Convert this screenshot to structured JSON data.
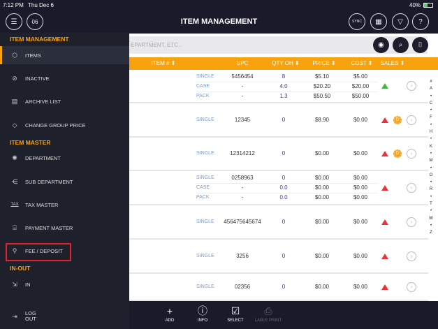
{
  "status": {
    "time": "7:12 PM",
    "date": "Thu Dec 6",
    "battery": "40%"
  },
  "header": {
    "title": "ITEM MANAGEMENT",
    "calendar_day": "06",
    "sync": "SYNC"
  },
  "search": {
    "placeholder": "EPARTMENT, ETC.."
  },
  "columns": [
    "ITEM # ⬍",
    "UPC",
    "QTY OH ⬍",
    "PRICE ⬍",
    "COST ⬍",
    "SALES ⬍"
  ],
  "rows": [
    {
      "subs": [
        {
          "type": "SINGLE",
          "upc": "5456454",
          "qty": "8",
          "price": "$5.10",
          "cost": "$5.00"
        },
        {
          "type": "CASE",
          "upc": "-",
          "qty": "4.0",
          "price": "$20.20",
          "cost": "$20.00"
        },
        {
          "type": "PACK",
          "upc": "-",
          "qty": "1.3",
          "price": "$50.50",
          "cost": "$50.00"
        }
      ],
      "trend": "up",
      "badge": false
    },
    {
      "subs": [
        {
          "type": "SINGLE",
          "upc": "12345",
          "qty": "0",
          "price": "$8.90",
          "cost": "$0.00"
        }
      ],
      "trend": "down",
      "badge": true
    },
    {
      "subs": [
        {
          "type": "SINGLE",
          "upc": "12314212",
          "qty": "0",
          "price": "$0.00",
          "cost": "$0.00"
        }
      ],
      "trend": "down",
      "badge": true
    },
    {
      "subs": [
        {
          "type": "SINGLE",
          "upc": "0258963",
          "qty": "0",
          "price": "$0.00",
          "cost": "$0.00"
        },
        {
          "type": "CASE",
          "upc": "-",
          "qty": "0.0",
          "price": "$0.00",
          "cost": "$0.00"
        },
        {
          "type": "PACK",
          "upc": "-",
          "qty": "0.0",
          "price": "$0.00",
          "cost": "$0.00"
        }
      ],
      "trend": "down",
      "badge": false
    },
    {
      "subs": [
        {
          "type": "SINGLE",
          "upc": "456475645674",
          "qty": "0",
          "price": "$0.00",
          "cost": "$0.00"
        }
      ],
      "trend": "down",
      "badge": false
    },
    {
      "subs": [
        {
          "type": "SINGLE",
          "upc": "3256",
          "qty": "0",
          "price": "$0.00",
          "cost": "$0.00"
        }
      ],
      "trend": "down",
      "badge": false
    },
    {
      "subs": [
        {
          "type": "SINGLE",
          "upc": "02356",
          "qty": "0",
          "price": "$0.00",
          "cost": "$0.00"
        }
      ],
      "trend": "down",
      "badge": false
    }
  ],
  "badge_letter": "D",
  "index": [
    "#",
    "A",
    "•",
    "C",
    "•",
    "F",
    "•",
    "H",
    "•",
    "K",
    "•",
    "M",
    "•",
    "O",
    "•",
    "R",
    "•",
    "T",
    "•",
    "W",
    "•",
    "Z"
  ],
  "sidebar": {
    "sections": [
      "ITEM MANAGEMENT",
      "ITEM MASTER",
      "IN-OUT"
    ],
    "items": [
      {
        "label": "ITEMS",
        "icon": "cube-icon",
        "glyph": "⬡"
      },
      {
        "label": "INACTIVE",
        "icon": "inactive-icon",
        "glyph": "⊘"
      },
      {
        "label": "ARCHIVE LIST",
        "icon": "archive-icon",
        "glyph": "▤"
      },
      {
        "label": "CHANGE GROUP PRICE",
        "icon": "tag-icon",
        "glyph": "◇"
      },
      {
        "label": "DEPARTMENT",
        "icon": "department-icon",
        "glyph": "✺"
      },
      {
        "label": "SUB DEPARTMENT",
        "icon": "sub-department-icon",
        "glyph": "⋲"
      },
      {
        "label": "TAX MASTER",
        "icon": "tax-icon",
        "glyph": "TAX"
      },
      {
        "label": "PAYMENT MASTER",
        "icon": "payment-icon",
        "glyph": "⌸"
      },
      {
        "label": "FEE / DEPOSIT",
        "icon": "fee-icon",
        "glyph": "⚲"
      },
      {
        "label": "IN",
        "icon": "in-icon",
        "glyph": "⇲"
      }
    ],
    "logout": "LOG OUT"
  },
  "bottom": [
    {
      "label": "ADD",
      "glyph": "+"
    },
    {
      "label": "INFO",
      "glyph": "ⓘ"
    },
    {
      "label": "SELECT",
      "glyph": "☑"
    },
    {
      "label": "LABLE PRINT",
      "glyph": "⎙",
      "disabled": true
    }
  ],
  "colors": {
    "accent": "#f8a20e",
    "dark": "#1b1a2b",
    "up": "#49b649",
    "down": "#e8333c",
    "highlight": "#e0262c"
  }
}
